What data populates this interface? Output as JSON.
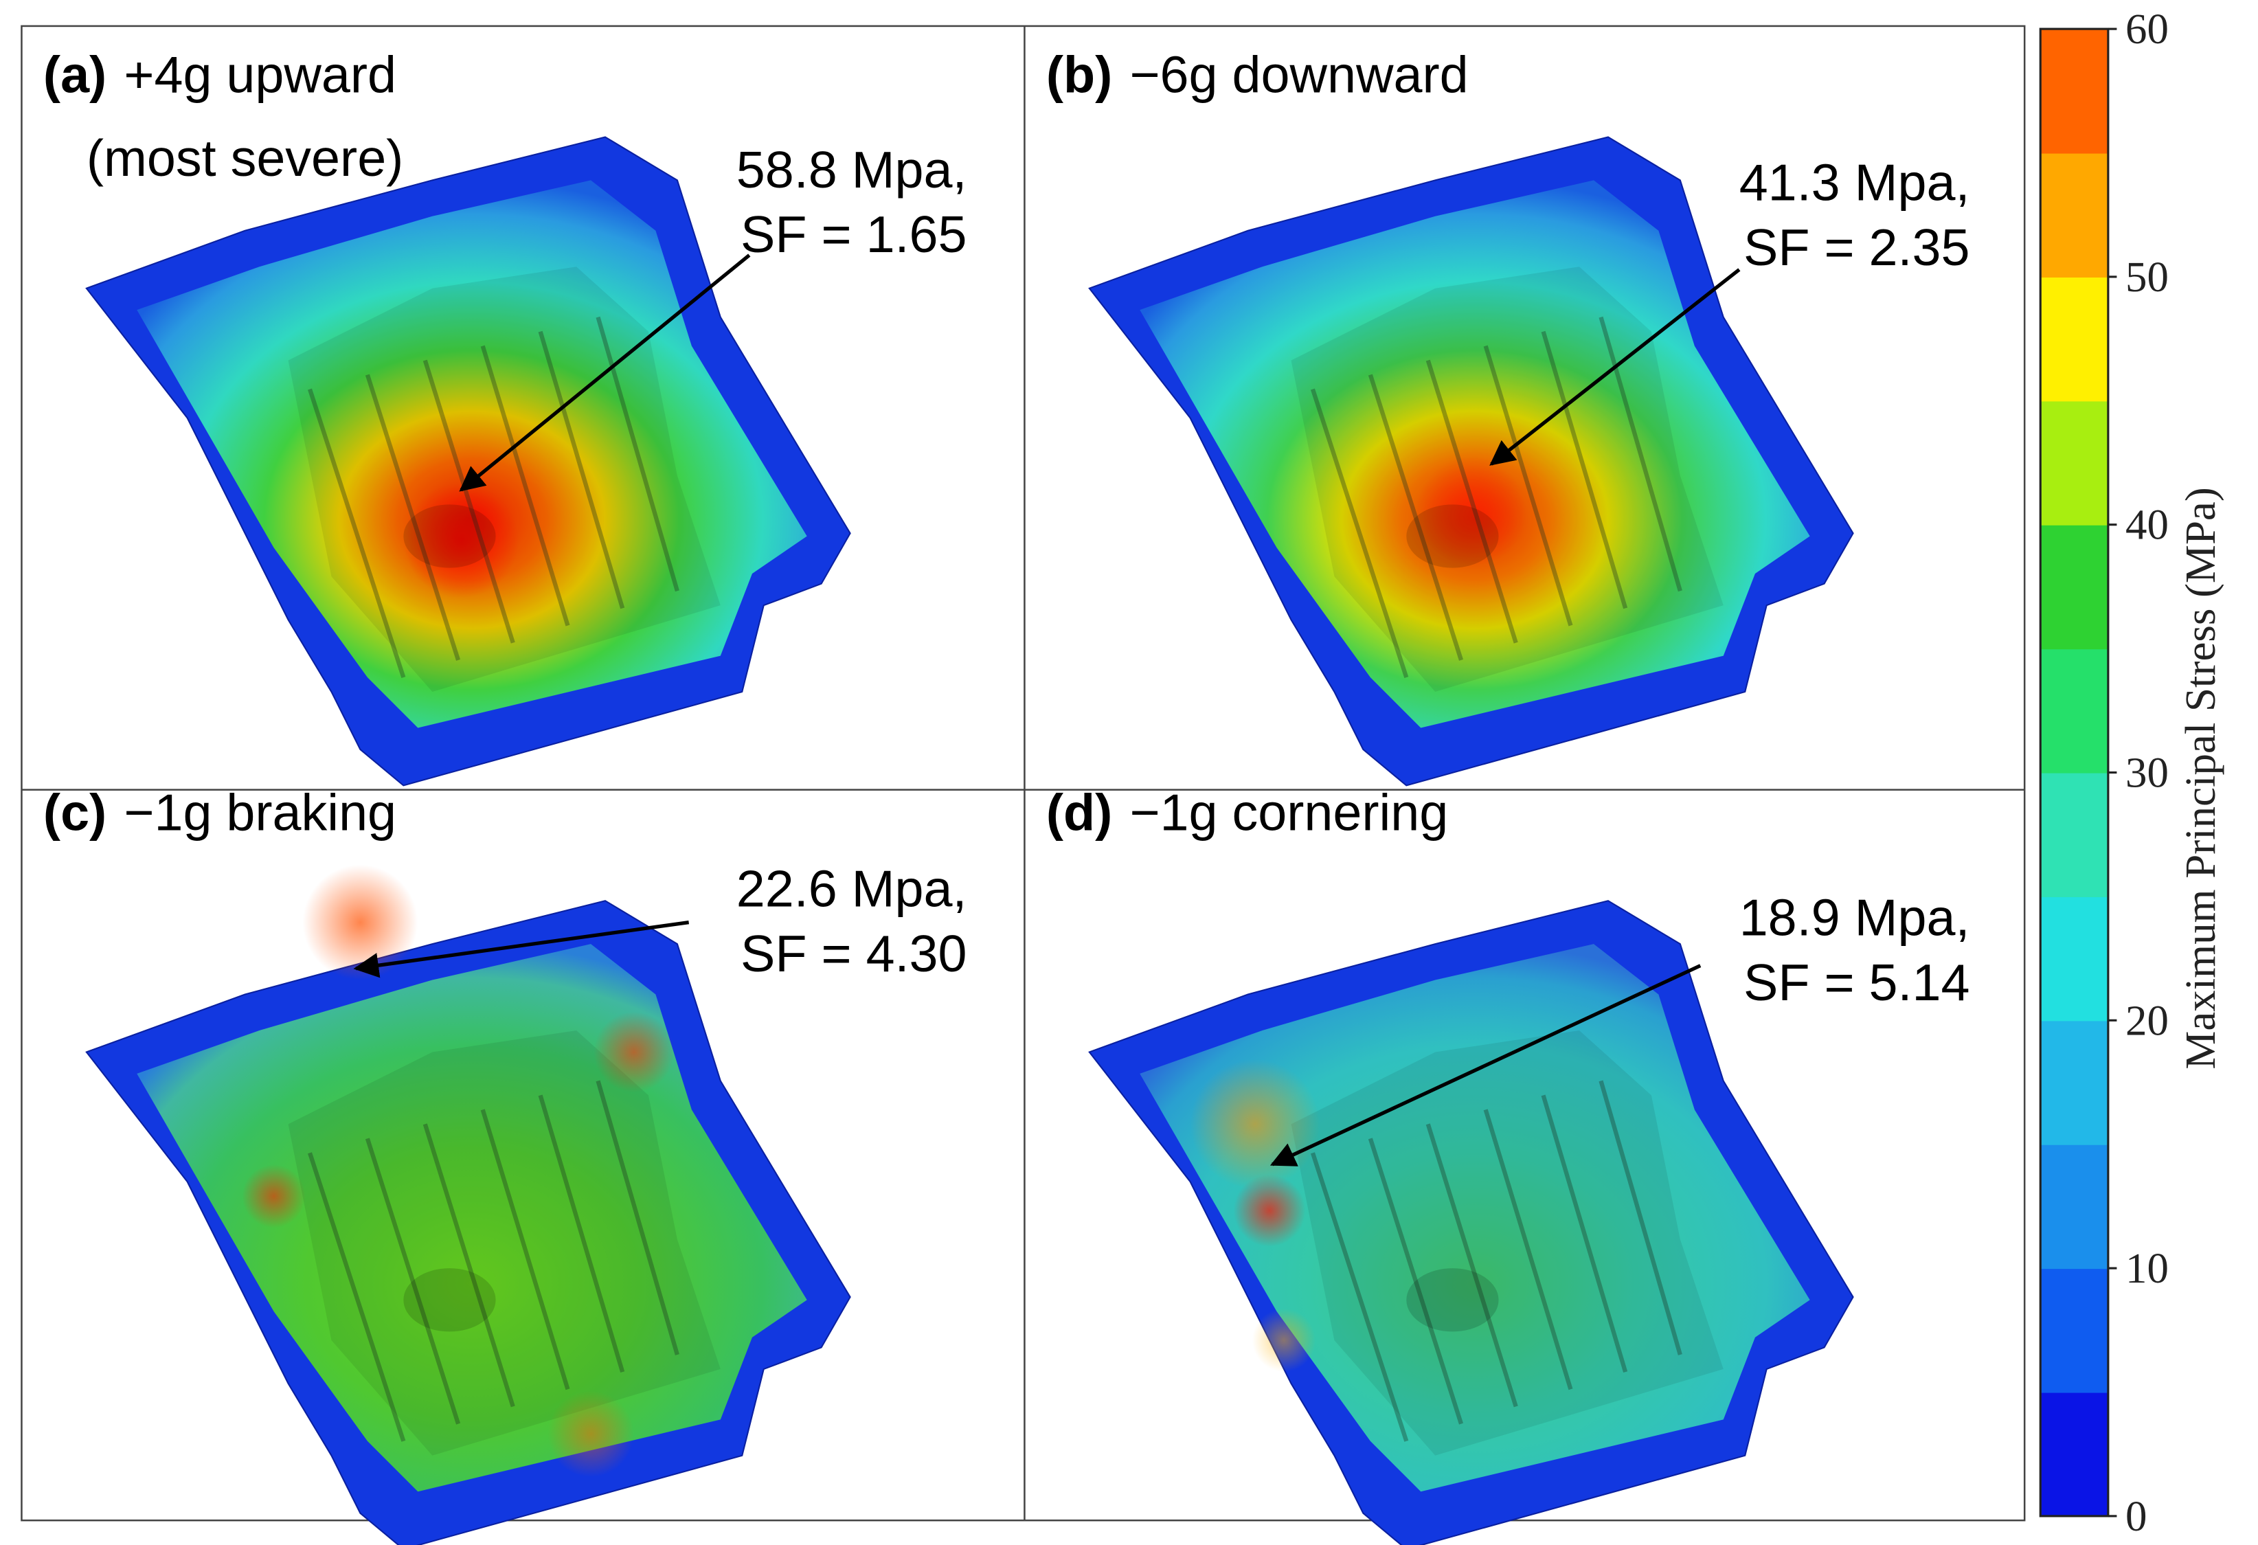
{
  "panels": [
    {
      "label": "(a)",
      "caption": "+4g upward",
      "caption_line2": "(most severe)",
      "stress": "58.8 Mpa,",
      "safety_factor": "SF = 1.65"
    },
    {
      "label": "(b)",
      "caption": "−6g downward",
      "stress": "41.3 Mpa,",
      "safety_factor": "SF = 2.35"
    },
    {
      "label": "(c)",
      "caption": "−1g braking",
      "stress": "22.6 Mpa,",
      "safety_factor": "SF = 4.30"
    },
    {
      "label": "(d)",
      "caption": "−1g cornering",
      "stress": "18.9 Mpa,",
      "safety_factor": "SF = 5.14"
    }
  ],
  "colorbar": {
    "title": "Maximum Principal Stress (MPa)",
    "range": [
      0,
      60
    ],
    "ticks": [
      0,
      10,
      20,
      30,
      40,
      50,
      60
    ],
    "colors": [
      "#0a14e6",
      "#0f5cf0",
      "#1a8fec",
      "#22b8e8",
      "#22e0e0",
      "#2fe2b4",
      "#25e06a",
      "#2ed232",
      "#a8ee10",
      "#fff000",
      "#ffa800",
      "#ff6400",
      "#ff0a0a"
    ]
  }
}
